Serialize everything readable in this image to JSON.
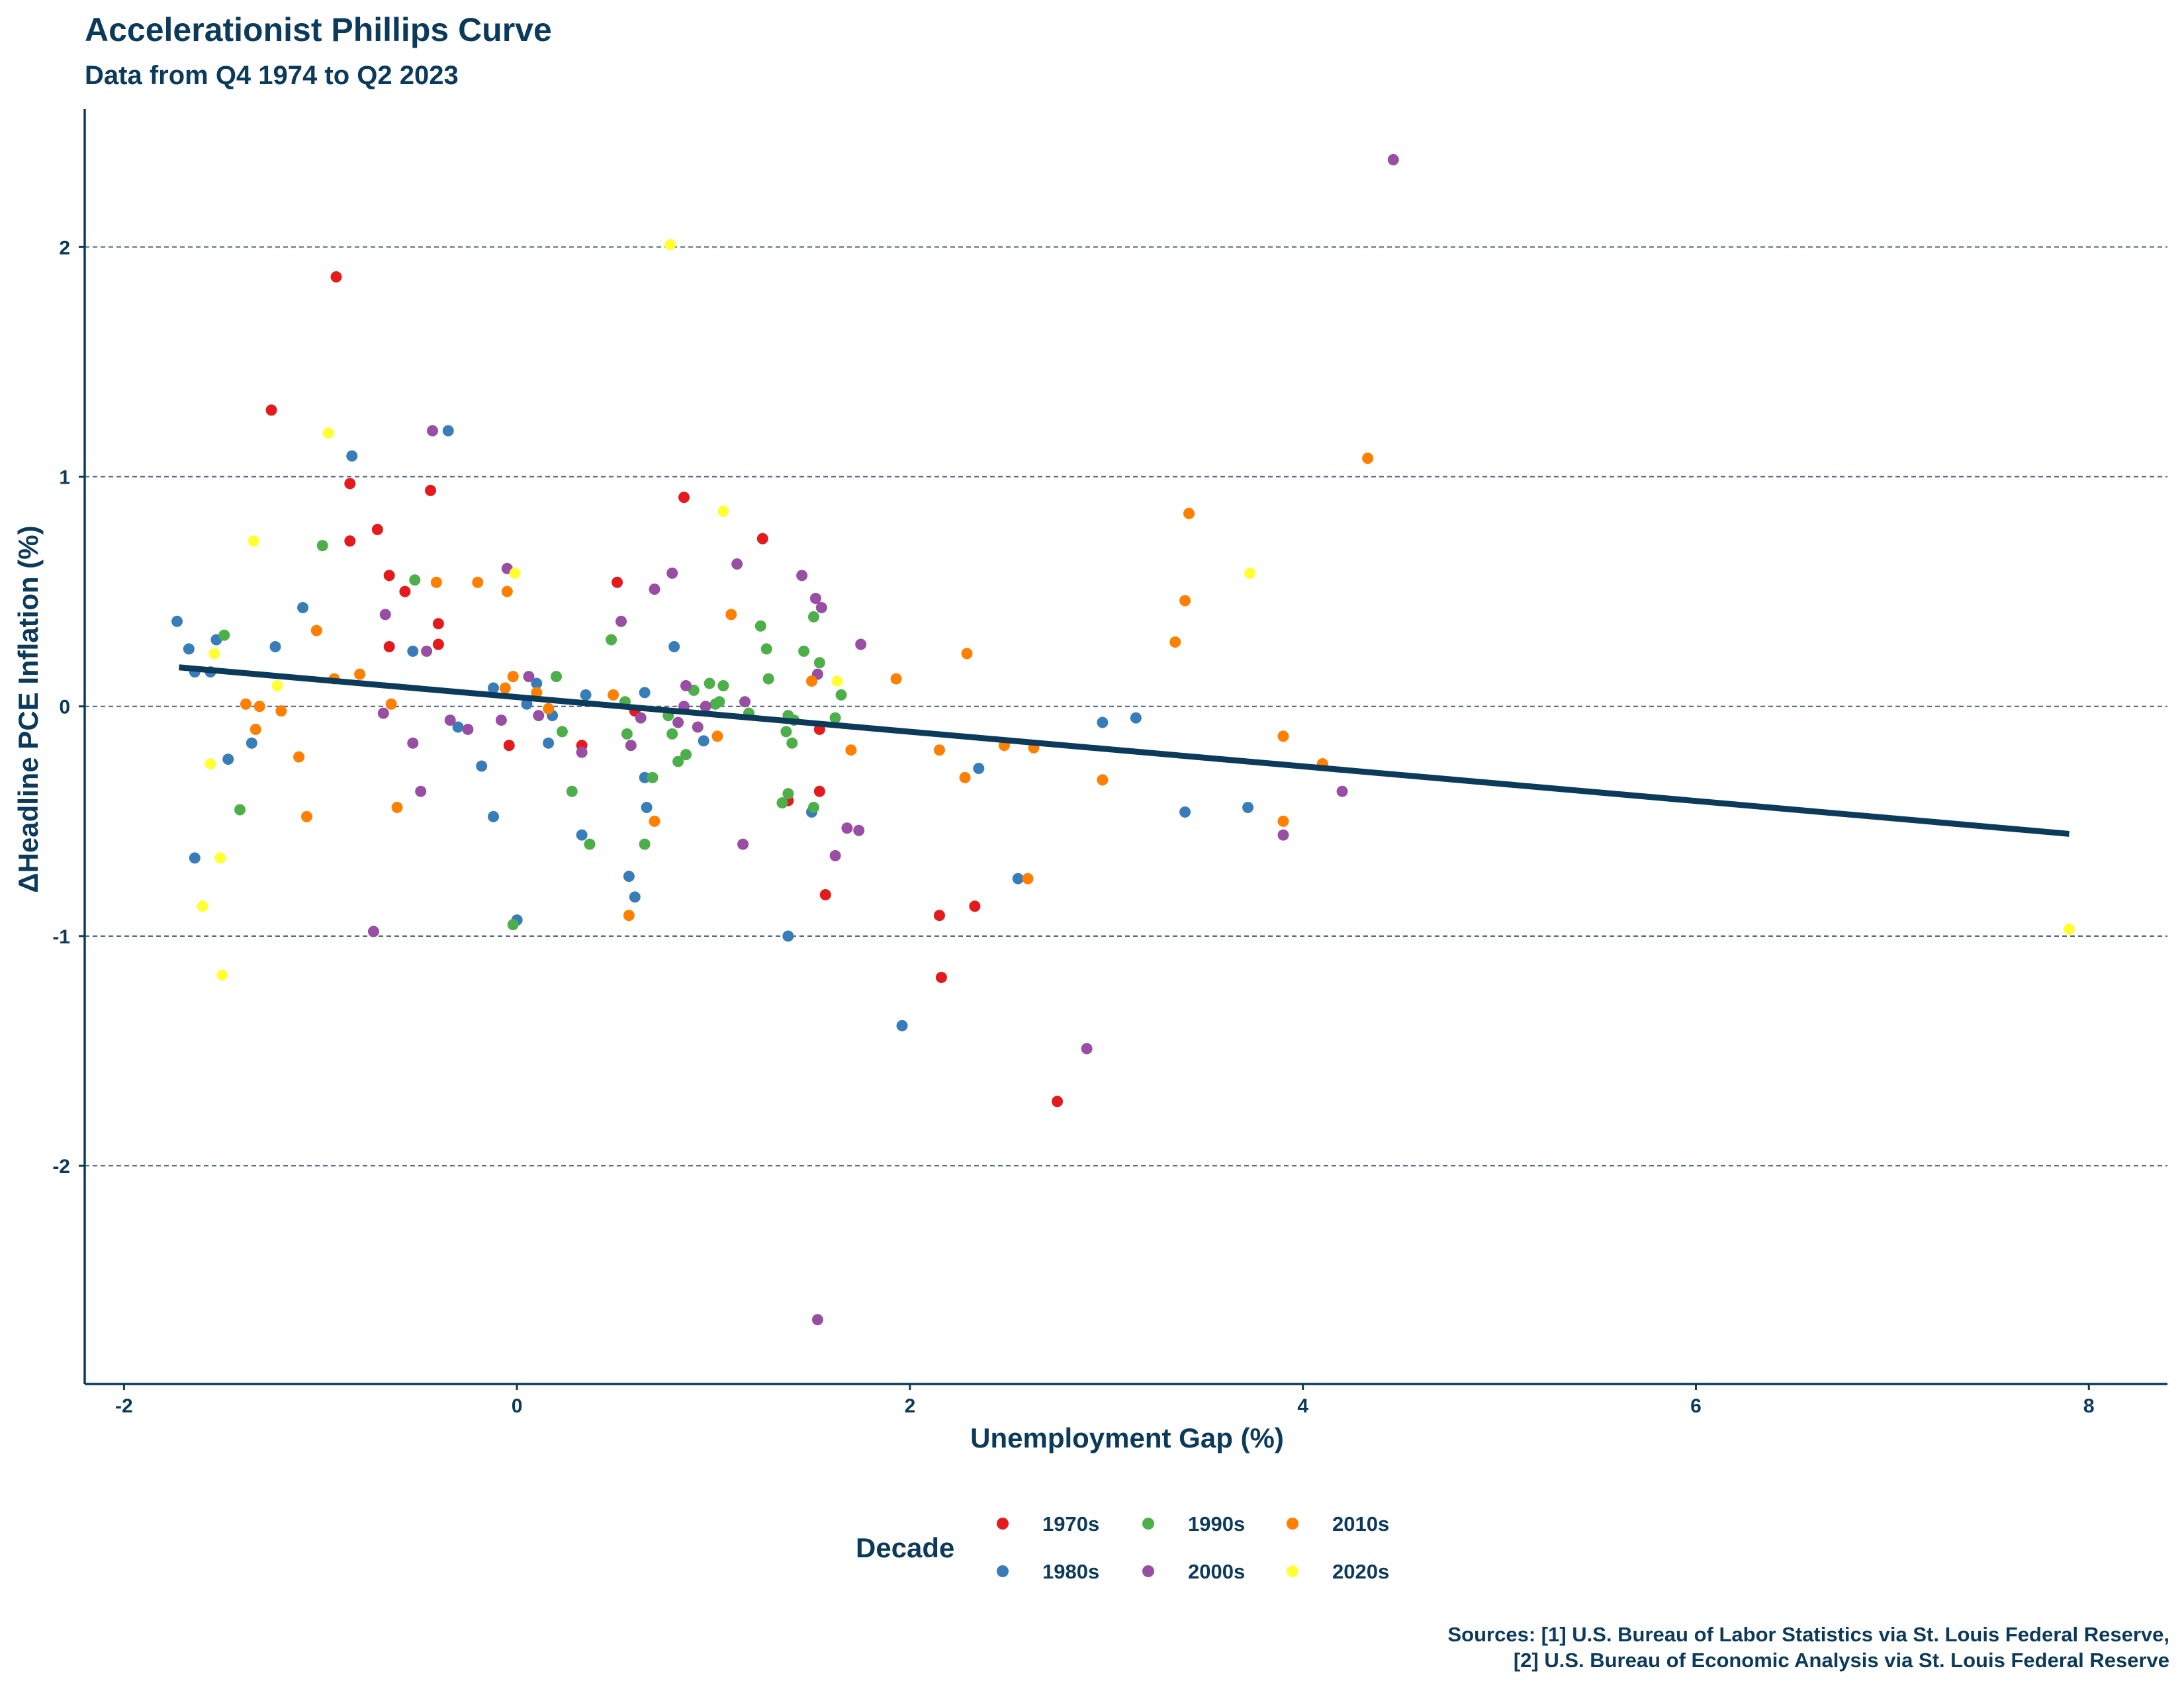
{
  "chart_data": {
    "type": "scatter",
    "title": "Accelerationist Phillips Curve",
    "subtitle": "Data from Q4 1974 to Q2 2023",
    "xlabel": "Unemployment Gap (%)",
    "ylabel": "ΔHeadline PCE Inflation (%)",
    "xlim": [
      -2.2,
      8.4
    ],
    "ylim": [
      -2.95,
      2.6
    ],
    "xticks": [
      -2,
      0,
      2,
      4,
      6,
      8
    ],
    "yticks": [
      -2,
      -1,
      0,
      1,
      2
    ],
    "grid": "horizontal dashed",
    "legend": {
      "title": "Decade",
      "position": "bottom"
    },
    "caption": [
      "Sources: [1] U.S. Bureau of Labor Statistics via St. Louis Federal Reserve,",
      "[2] U.S. Bureau of Economic Analysis via St. Louis Federal Reserve"
    ],
    "colors": {
      "axis": "#0c3a5b",
      "fit_line": "#0c3a5b",
      "grid": "#4a5f78",
      "1970s": "#e41a1c",
      "1980s": "#377eb8",
      "1990s": "#4daf4a",
      "2000s": "#984ea3",
      "2010s": "#ff7f00",
      "2020s": "#ffff33"
    },
    "fit_line": {
      "x": [
        -1.72,
        7.9
      ],
      "y": [
        0.17,
        -0.555
      ]
    },
    "series": [
      {
        "name": "1970s",
        "points": [
          [
            -0.92,
            1.87
          ],
          [
            -1.25,
            1.29
          ],
          [
            -0.85,
            0.97
          ],
          [
            -0.71,
            0.77
          ],
          [
            -0.85,
            0.72
          ],
          [
            -0.65,
            0.57
          ],
          [
            -0.57,
            0.5
          ],
          [
            -0.44,
            0.94
          ],
          [
            -0.4,
            0.36
          ],
          [
            -0.65,
            0.26
          ],
          [
            -0.4,
            0.27
          ],
          [
            0.51,
            0.54
          ],
          [
            0.85,
            0.91
          ],
          [
            1.25,
            0.73
          ],
          [
            -0.04,
            -0.17
          ],
          [
            0.33,
            -0.17
          ],
          [
            0.6,
            -0.02
          ],
          [
            1.38,
            -0.41
          ],
          [
            1.54,
            -0.1
          ],
          [
            1.54,
            -0.37
          ],
          [
            1.57,
            -0.82
          ],
          [
            2.15,
            -0.91
          ],
          [
            2.16,
            -1.18
          ],
          [
            2.33,
            -0.87
          ],
          [
            2.75,
            -1.72
          ]
        ]
      },
      {
        "name": "1980s",
        "points": [
          [
            -1.73,
            0.37
          ],
          [
            -1.67,
            0.25
          ],
          [
            -1.64,
            0.15
          ],
          [
            -1.56,
            0.15
          ],
          [
            -1.53,
            0.29
          ],
          [
            -1.47,
            -0.23
          ],
          [
            -1.64,
            -0.66
          ],
          [
            -1.35,
            -0.16
          ],
          [
            -1.23,
            0.26
          ],
          [
            -1.09,
            0.43
          ],
          [
            -0.84,
            1.09
          ],
          [
            -0.35,
            1.2
          ],
          [
            -0.53,
            0.24
          ],
          [
            -0.3,
            -0.09
          ],
          [
            -0.18,
            -0.26
          ],
          [
            -0.12,
            0.08
          ],
          [
            -0.12,
            -0.48
          ],
          [
            0.0,
            -0.93
          ],
          [
            0.05,
            0.01
          ],
          [
            0.1,
            0.1
          ],
          [
            0.16,
            -0.16
          ],
          [
            0.18,
            -0.04
          ],
          [
            0.33,
            -0.56
          ],
          [
            0.35,
            0.05
          ],
          [
            0.57,
            -0.74
          ],
          [
            0.6,
            -0.83
          ],
          [
            0.65,
            0.06
          ],
          [
            0.65,
            -0.31
          ],
          [
            0.66,
            -0.44
          ],
          [
            0.8,
            0.26
          ],
          [
            0.95,
            -0.15
          ],
          [
            1.38,
            -1.0
          ],
          [
            1.5,
            -0.46
          ],
          [
            1.96,
            -1.39
          ],
          [
            2.35,
            -0.27
          ],
          [
            2.55,
            -0.75
          ],
          [
            2.98,
            -0.07
          ],
          [
            3.15,
            -0.05
          ],
          [
            3.4,
            -0.46
          ],
          [
            3.72,
            -0.44
          ]
        ]
      },
      {
        "name": "1990s",
        "points": [
          [
            -1.49,
            0.31
          ],
          [
            -1.41,
            -0.45
          ],
          [
            -0.99,
            0.7
          ],
          [
            -0.52,
            0.55
          ],
          [
            -0.02,
            -0.95
          ],
          [
            0.2,
            0.13
          ],
          [
            0.23,
            -0.11
          ],
          [
            0.28,
            -0.37
          ],
          [
            0.37,
            -0.6
          ],
          [
            0.48,
            0.29
          ],
          [
            0.55,
            0.02
          ],
          [
            0.56,
            -0.12
          ],
          [
            0.65,
            -0.6
          ],
          [
            0.69,
            -0.31
          ],
          [
            0.77,
            -0.04
          ],
          [
            0.79,
            -0.12
          ],
          [
            0.82,
            -0.24
          ],
          [
            0.86,
            -0.21
          ],
          [
            0.9,
            0.07
          ],
          [
            0.98,
            0.1
          ],
          [
            1.01,
            0.01
          ],
          [
            1.03,
            0.02
          ],
          [
            1.05,
            0.09
          ],
          [
            1.18,
            -0.03
          ],
          [
            1.24,
            0.35
          ],
          [
            1.27,
            0.25
          ],
          [
            1.28,
            0.12
          ],
          [
            1.35,
            -0.42
          ],
          [
            1.37,
            -0.11
          ],
          [
            1.38,
            -0.38
          ],
          [
            1.38,
            -0.04
          ],
          [
            1.4,
            -0.16
          ],
          [
            1.41,
            -0.06
          ],
          [
            1.46,
            0.24
          ],
          [
            1.51,
            0.39
          ],
          [
            1.51,
            -0.44
          ],
          [
            1.54,
            0.19
          ],
          [
            1.62,
            -0.05
          ],
          [
            1.65,
            0.05
          ]
        ]
      },
      {
        "name": "2000s",
        "points": [
          [
            -0.73,
            -0.98
          ],
          [
            -0.68,
            -0.03
          ],
          [
            -0.67,
            0.4
          ],
          [
            -0.53,
            -0.16
          ],
          [
            -0.49,
            -0.37
          ],
          [
            -0.46,
            0.24
          ],
          [
            -0.43,
            1.2
          ],
          [
            -0.34,
            -0.06
          ],
          [
            -0.25,
            -0.1
          ],
          [
            -0.08,
            -0.06
          ],
          [
            -0.05,
            0.6
          ],
          [
            0.06,
            0.13
          ],
          [
            0.11,
            -0.04
          ],
          [
            0.33,
            -0.2
          ],
          [
            0.53,
            0.37
          ],
          [
            0.58,
            -0.17
          ],
          [
            0.63,
            -0.05
          ],
          [
            0.7,
            0.51
          ],
          [
            0.79,
            0.58
          ],
          [
            0.82,
            -0.07
          ],
          [
            0.85,
            0.0
          ],
          [
            0.86,
            0.09
          ],
          [
            0.92,
            -0.09
          ],
          [
            0.96,
            0.0
          ],
          [
            1.12,
            0.62
          ],
          [
            1.15,
            -0.6
          ],
          [
            1.16,
            0.02
          ],
          [
            1.45,
            0.57
          ],
          [
            1.52,
            0.47
          ],
          [
            1.53,
            0.14
          ],
          [
            1.55,
            0.43
          ],
          [
            1.62,
            -0.65
          ],
          [
            1.68,
            -0.53
          ],
          [
            1.74,
            -0.54
          ],
          [
            1.75,
            0.27
          ],
          [
            1.53,
            -2.67
          ],
          [
            2.9,
            -1.49
          ],
          [
            3.9,
            -0.56
          ],
          [
            4.2,
            -0.37
          ],
          [
            4.46,
            2.38
          ]
        ]
      },
      {
        "name": "2010s",
        "points": [
          [
            -1.38,
            0.01
          ],
          [
            -1.33,
            -0.1
          ],
          [
            -1.31,
            0.0
          ],
          [
            -1.2,
            -0.02
          ],
          [
            -1.11,
            -0.22
          ],
          [
            -1.07,
            -0.48
          ],
          [
            -1.02,
            0.33
          ],
          [
            -0.93,
            0.12
          ],
          [
            -0.8,
            0.14
          ],
          [
            -0.64,
            0.01
          ],
          [
            -0.61,
            -0.44
          ],
          [
            -0.41,
            0.54
          ],
          [
            -0.2,
            0.54
          ],
          [
            -0.06,
            0.08
          ],
          [
            -0.05,
            0.5
          ],
          [
            -0.02,
            0.13
          ],
          [
            0.1,
            0.06
          ],
          [
            0.16,
            -0.01
          ],
          [
            0.49,
            0.05
          ],
          [
            0.57,
            -0.91
          ],
          [
            0.7,
            -0.5
          ],
          [
            1.02,
            -0.13
          ],
          [
            1.09,
            0.4
          ],
          [
            1.5,
            0.11
          ],
          [
            1.7,
            -0.19
          ],
          [
            1.93,
            0.12
          ],
          [
            2.15,
            -0.19
          ],
          [
            2.28,
            -0.31
          ],
          [
            2.29,
            0.23
          ],
          [
            2.48,
            -0.17
          ],
          [
            2.6,
            -0.75
          ],
          [
            2.63,
            -0.18
          ],
          [
            2.98,
            -0.32
          ],
          [
            3.35,
            0.28
          ],
          [
            3.4,
            0.46
          ],
          [
            3.42,
            0.84
          ],
          [
            3.9,
            -0.13
          ],
          [
            3.9,
            -0.5
          ],
          [
            4.1,
            -0.25
          ],
          [
            4.33,
            1.08
          ]
        ]
      },
      {
        "name": "2020s",
        "points": [
          [
            -1.6,
            -0.87
          ],
          [
            -1.56,
            -0.25
          ],
          [
            -1.54,
            0.23
          ],
          [
            -1.51,
            -0.66
          ],
          [
            -1.5,
            -1.17
          ],
          [
            -1.34,
            0.72
          ],
          [
            -1.22,
            0.09
          ],
          [
            -0.96,
            1.19
          ],
          [
            -0.01,
            0.58
          ],
          [
            0.78,
            2.01
          ],
          [
            1.05,
            0.85
          ],
          [
            1.63,
            0.11
          ],
          [
            3.73,
            0.58
          ],
          [
            7.9,
            -0.97
          ]
        ]
      }
    ]
  }
}
